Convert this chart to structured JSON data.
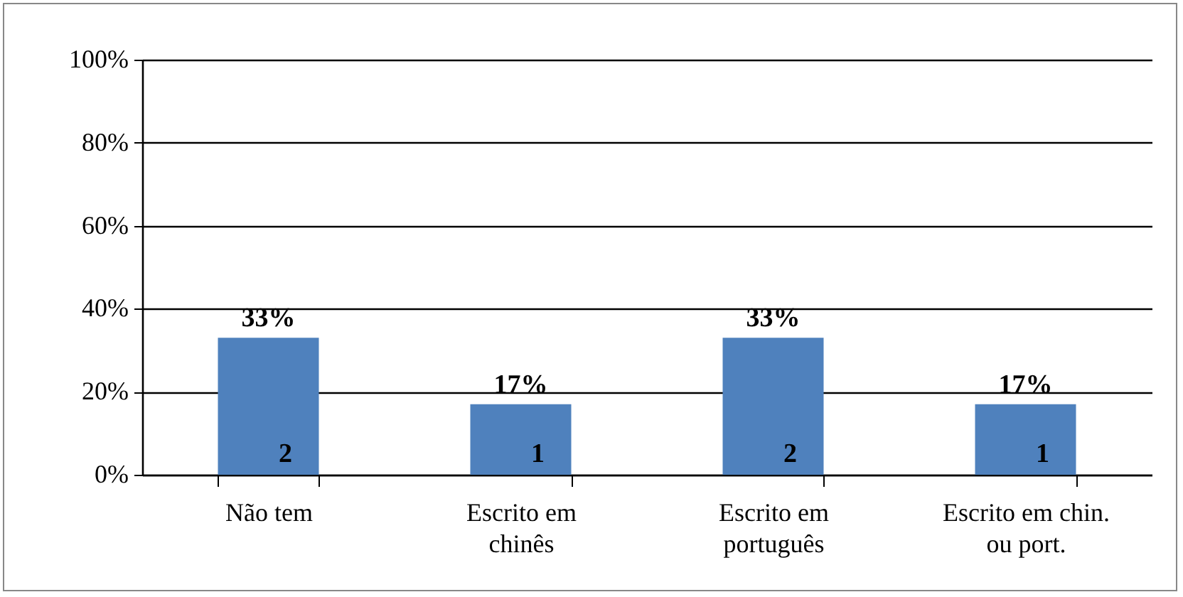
{
  "chart_data": {
    "type": "bar",
    "categories": [
      "Não tem",
      "Escrito em chinês",
      "Escrito em português",
      "Escrito em chin. ou port."
    ],
    "values": [
      33,
      17,
      33,
      17
    ],
    "color": "#4f81bd",
    "value_labels": [
      "33%",
      "17%",
      "33%",
      "17%"
    ],
    "ylim": [
      0,
      100
    ],
    "yticks": [
      {
        "value": 0,
        "label": "0%"
      },
      {
        "value": 20,
        "label": "20%"
      },
      {
        "value": 40,
        "label": "40%"
      },
      {
        "value": 60,
        "label": "60%"
      },
      {
        "value": 80,
        "label": "80%"
      },
      {
        "value": 100,
        "label": "100%"
      }
    ],
    "grid": "y",
    "annotations": [
      "2",
      "1",
      "2",
      "1"
    ]
  }
}
